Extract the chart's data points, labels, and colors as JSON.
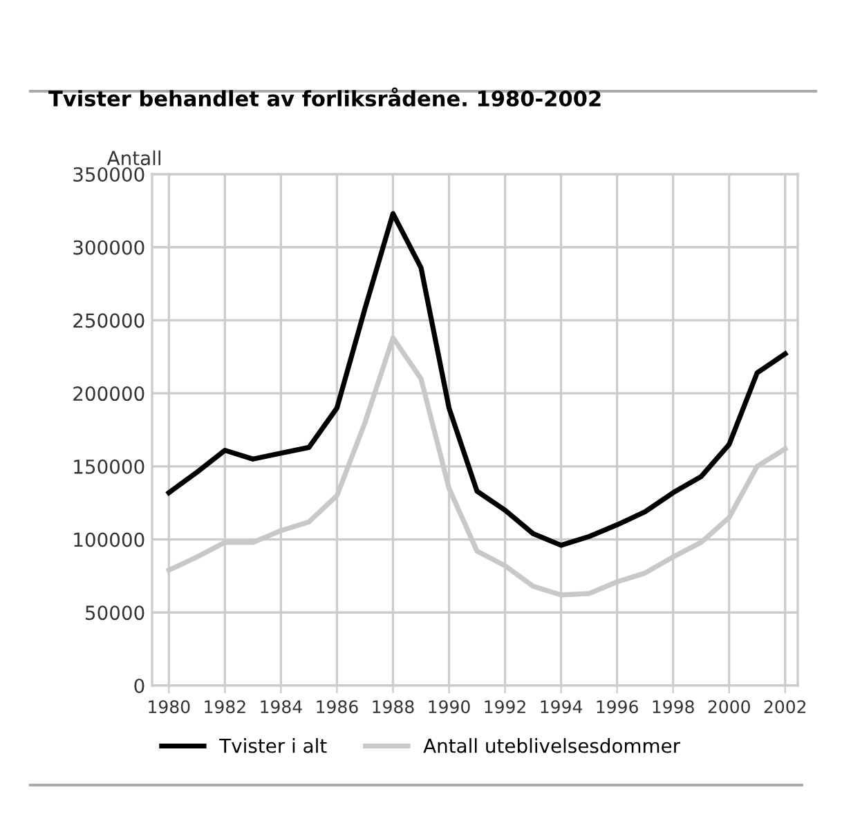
{
  "chart_data": {
    "type": "line",
    "title": "Tvister behandlet av forliksrådene. 1980-2002",
    "ylabel": "Antall",
    "x": [
      1980,
      1981,
      1982,
      1983,
      1984,
      1985,
      1986,
      1987,
      1988,
      1989,
      1990,
      1991,
      1992,
      1993,
      1994,
      1995,
      1996,
      1997,
      1998,
      1999,
      2000,
      2001,
      2002
    ],
    "series": [
      {
        "name": "Tvister i alt",
        "color": "#000000",
        "values": [
          132000,
          146000,
          161000,
          155000,
          159000,
          163000,
          190000,
          258000,
          323000,
          286000,
          190000,
          133000,
          120000,
          104000,
          96000,
          102000,
          110000,
          119000,
          132000,
          143000,
          165000,
          214000,
          227000
        ]
      },
      {
        "name": "Antall uteblivelsesdommer",
        "color": "#c8c8c8",
        "values": [
          79000,
          88000,
          98000,
          98000,
          106000,
          112000,
          130000,
          180000,
          238000,
          210000,
          135000,
          92000,
          82000,
          68000,
          62000,
          63000,
          71000,
          77000,
          88000,
          98000,
          115000,
          150000,
          162000
        ]
      }
    ],
    "xlim": [
      1979.4,
      2002.45
    ],
    "xticks": [
      1980,
      1982,
      1984,
      1986,
      1988,
      1990,
      1992,
      1994,
      1996,
      1998,
      2000,
      2002
    ],
    "ylim": [
      0,
      350000
    ],
    "yticks": [
      0,
      50000,
      100000,
      150000,
      200000,
      250000,
      300000,
      350000
    ],
    "grid": true,
    "legend": "bottom",
    "line_style": "solid",
    "marker": "none"
  }
}
